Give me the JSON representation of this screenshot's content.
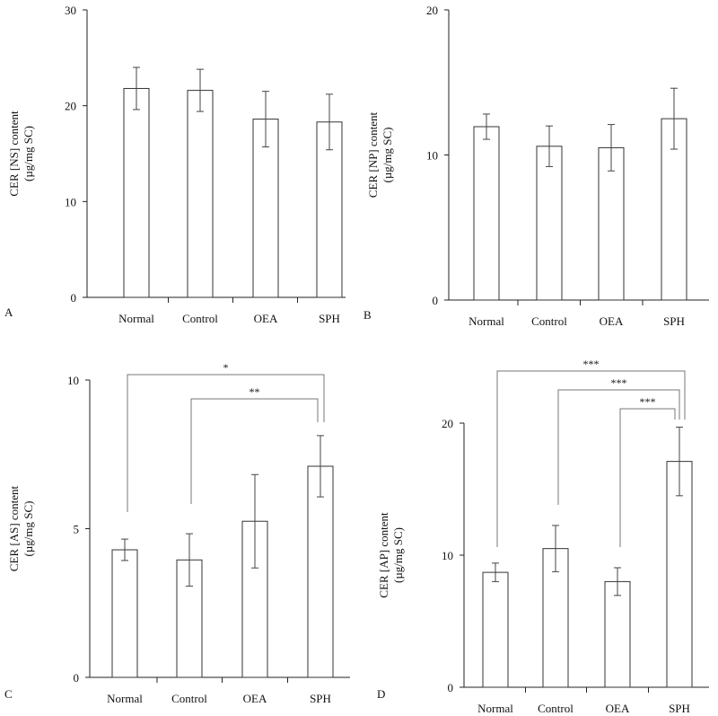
{
  "chart_data": [
    {
      "type": "bar",
      "panel_label": "A",
      "categories": [
        "Normal",
        "Control",
        "OEA",
        "SPH"
      ],
      "values": [
        21.8,
        21.6,
        18.6,
        18.3
      ],
      "errors": [
        2.2,
        2.2,
        2.9,
        2.9
      ],
      "ylabel_line1": "CER [NS] content",
      "ylabel_line2": "(µg/mg SC)",
      "ylim": [
        0,
        30
      ],
      "yticks": [
        0,
        10,
        20,
        30
      ],
      "significance": []
    },
    {
      "type": "bar",
      "panel_label": "B",
      "categories": [
        "Normal",
        "Control",
        "OEA",
        "SPH"
      ],
      "values": [
        11.95,
        10.6,
        10.5,
        12.5
      ],
      "errors": [
        0.87,
        1.4,
        1.6,
        2.1
      ],
      "ylabel_line1": "CER [NP] content",
      "ylabel_line2": "(µg/mg SC)",
      "ylim": [
        0,
        20
      ],
      "yticks": [
        0,
        10,
        20
      ],
      "significance": []
    },
    {
      "type": "bar",
      "panel_label": "C",
      "categories": [
        "Normal",
        "Control",
        "OEA",
        "SPH"
      ],
      "values": [
        4.29,
        3.95,
        5.25,
        7.1
      ],
      "errors": [
        0.36,
        0.88,
        1.57,
        1.03
      ],
      "ylabel_line1": "CER [AS] content",
      "ylabel_line2": "(µg/mg SC)",
      "ylim": [
        0,
        10
      ],
      "yticks": [
        0,
        5,
        10
      ],
      "significance": [
        {
          "from": "Normal",
          "to": "SPH",
          "label": "*"
        },
        {
          "from": "Control",
          "to": "SPH",
          "label": "**"
        }
      ]
    },
    {
      "type": "bar",
      "panel_label": "D",
      "categories": [
        "Normal",
        "Control",
        "OEA",
        "SPH"
      ],
      "values": [
        8.7,
        10.5,
        8.0,
        17.1
      ],
      "errors": [
        0.7,
        1.75,
        1.05,
        2.6
      ],
      "ylabel_line1": "CER [AP] content",
      "ylabel_line2": "(µg/mg SC)",
      "ylim": [
        0,
        20
      ],
      "yticks": [
        0,
        10,
        20
      ],
      "significance": [
        {
          "from": "Normal",
          "to": "SPH",
          "label": "***"
        },
        {
          "from": "Control",
          "to": "SPH",
          "label": "***"
        },
        {
          "from": "OEA",
          "to": "SPH",
          "label": "***"
        }
      ]
    }
  ]
}
